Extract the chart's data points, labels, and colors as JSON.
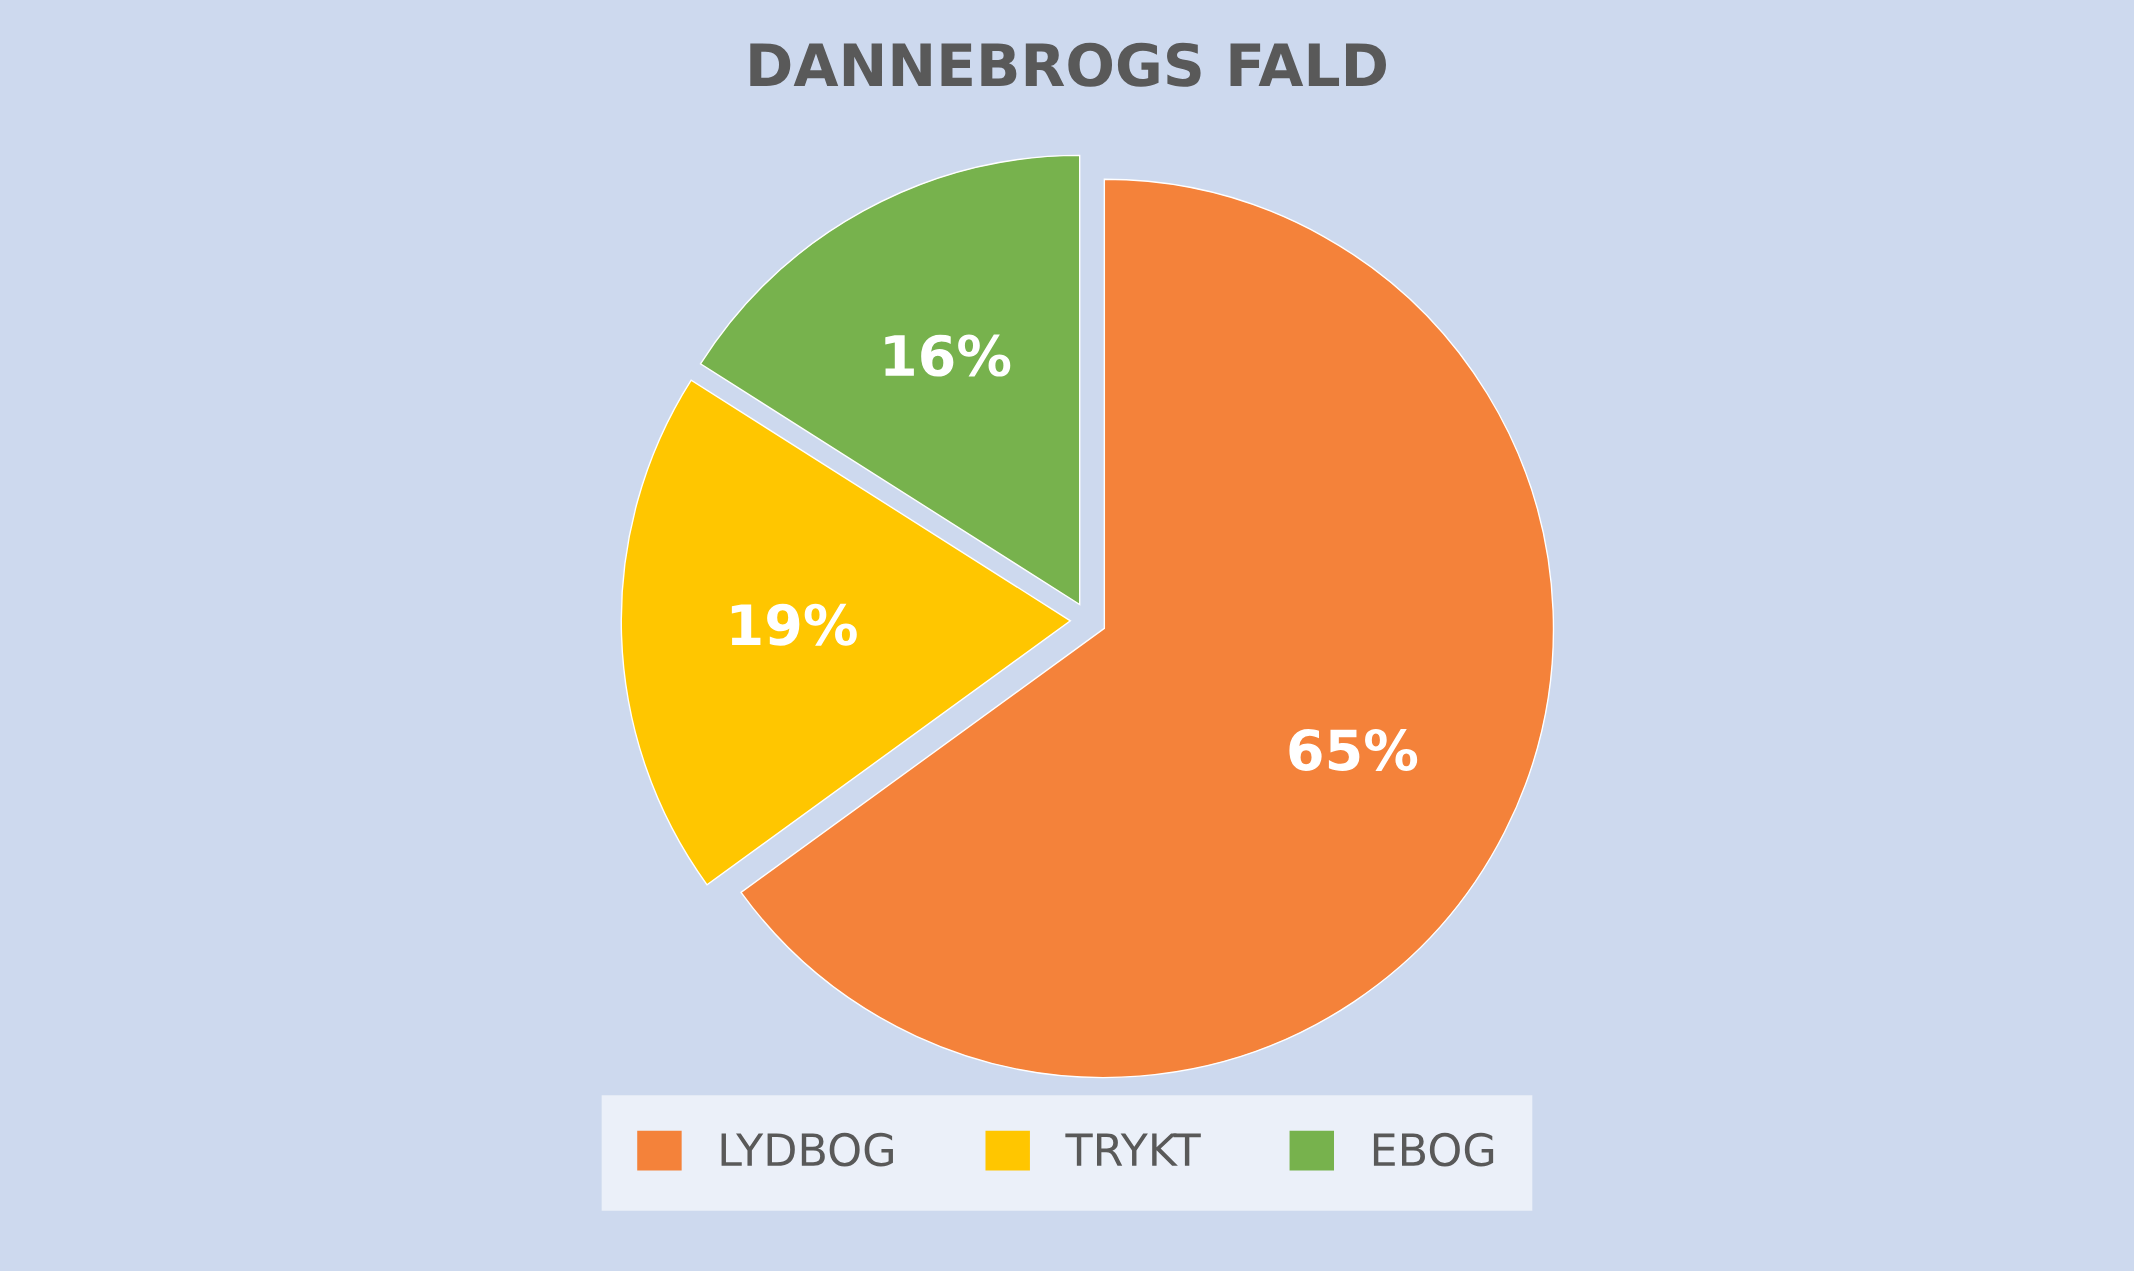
{
  "chart_data": {
    "type": "pie",
    "title": "DANNEBROGS FALD",
    "categories": [
      "LYDBOG",
      "TRYKT",
      "EBOG"
    ],
    "values": [
      65,
      19,
      16
    ],
    "colors": [
      "#f4823a",
      "#ffc600",
      "#77b24d"
    ],
    "value_labels": [
      "65%",
      "19%",
      "16%"
    ],
    "legend": "bottom"
  }
}
